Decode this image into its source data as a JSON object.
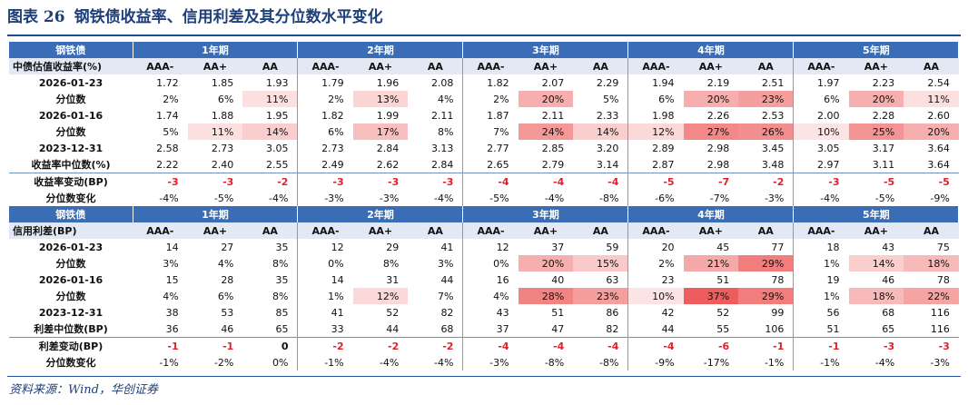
{
  "title": {
    "prefix": "图表 26",
    "text": "钢铁债收益率、信用利差及其分位数水平变化"
  },
  "header_row1": [
    "钢铁债",
    "1年期",
    "2年期",
    "3年期",
    "4年期",
    "5年期"
  ],
  "header_row2": [
    "中债估值收益率(%)",
    "AAA-",
    "AA+",
    "AA",
    "AAA-",
    "AA+",
    "AA",
    "AAA-",
    "AA+",
    "AA",
    "AAA-",
    "AA+",
    "AA",
    "AAA-",
    "AA+",
    "AA"
  ],
  "yield_rows": [
    {
      "label": "2026-01-23",
      "values": [
        "1.72",
        "1.85",
        "1.93",
        "1.79",
        "1.96",
        "2.08",
        "1.82",
        "2.07",
        "2.29",
        "1.94",
        "2.19",
        "2.51",
        "1.97",
        "2.23",
        "2.54"
      ]
    },
    {
      "label": "分位数",
      "values": [
        "2%",
        "6%",
        "11%",
        "2%",
        "13%",
        "4%",
        "2%",
        "20%",
        "5%",
        "6%",
        "20%",
        "23%",
        "6%",
        "20%",
        "11%"
      ]
    },
    {
      "label": "2026-01-16",
      "values": [
        "1.74",
        "1.88",
        "1.95",
        "1.82",
        "1.99",
        "2.11",
        "1.87",
        "2.11",
        "2.33",
        "1.98",
        "2.26",
        "2.53",
        "2.00",
        "2.28",
        "2.60"
      ]
    },
    {
      "label": "分位数",
      "values": [
        "5%",
        "11%",
        "14%",
        "6%",
        "17%",
        "8%",
        "7%",
        "24%",
        "14%",
        "12%",
        "27%",
        "26%",
        "10%",
        "25%",
        "20%"
      ]
    },
    {
      "label": "2023-12-31",
      "values": [
        "2.58",
        "2.73",
        "3.05",
        "2.73",
        "2.84",
        "3.13",
        "2.77",
        "2.85",
        "3.20",
        "2.89",
        "2.98",
        "3.45",
        "3.05",
        "3.17",
        "3.64"
      ]
    },
    {
      "label": "收益率中位数(%)",
      "values": [
        "2.22",
        "2.40",
        "2.55",
        "2.49",
        "2.62",
        "2.84",
        "2.65",
        "2.79",
        "3.14",
        "2.87",
        "2.98",
        "3.48",
        "2.97",
        "3.11",
        "3.64"
      ]
    },
    {
      "label": "收益率变动(BP)",
      "values": [
        "-3",
        "-3",
        "-2",
        "-3",
        "-3",
        "-3",
        "-4",
        "-4",
        "-4",
        "-5",
        "-7",
        "-2",
        "-3",
        "-5",
        "-5"
      ]
    },
    {
      "label": "分位数变化",
      "values": [
        "-4%",
        "-5%",
        "-4%",
        "-3%",
        "-3%",
        "-4%",
        "-5%",
        "-4%",
        "-8%",
        "-6%",
        "-7%",
        "-3%",
        "-4%",
        "-5%",
        "-9%"
      ]
    }
  ],
  "header_row3": [
    "钢铁债",
    "1年期",
    "2年期",
    "3年期",
    "4年期",
    "5年期"
  ],
  "header_row4": [
    "信用利差(BP)",
    "AAA-",
    "AA+",
    "AA",
    "AAA-",
    "AA+",
    "AA",
    "AAA-",
    "AA+",
    "AA",
    "AAA-",
    "AA+",
    "AA",
    "AAA-",
    "AA+",
    "AA"
  ],
  "spread_rows": [
    {
      "label": "2026-01-23",
      "values": [
        "14",
        "27",
        "35",
        "12",
        "29",
        "41",
        "12",
        "37",
        "59",
        "20",
        "45",
        "77",
        "18",
        "43",
        "75"
      ]
    },
    {
      "label": "分位数",
      "values": [
        "3%",
        "4%",
        "8%",
        "0%",
        "8%",
        "3%",
        "0%",
        "20%",
        "15%",
        "2%",
        "21%",
        "29%",
        "1%",
        "14%",
        "18%"
      ]
    },
    {
      "label": "2026-01-16",
      "values": [
        "15",
        "28",
        "35",
        "14",
        "31",
        "44",
        "16",
        "40",
        "63",
        "23",
        "51",
        "78",
        "19",
        "46",
        "78"
      ]
    },
    {
      "label": "分位数",
      "values": [
        "4%",
        "6%",
        "8%",
        "1%",
        "12%",
        "7%",
        "4%",
        "28%",
        "23%",
        "10%",
        "37%",
        "29%",
        "1%",
        "18%",
        "22%"
      ]
    },
    {
      "label": "2023-12-31",
      "values": [
        "38",
        "53",
        "85",
        "41",
        "52",
        "82",
        "43",
        "51",
        "86",
        "42",
        "52",
        "99",
        "56",
        "68",
        "116"
      ]
    },
    {
      "label": "利差中位数(BP)",
      "values": [
        "36",
        "46",
        "65",
        "33",
        "44",
        "68",
        "37",
        "47",
        "82",
        "44",
        "55",
        "106",
        "51",
        "65",
        "116"
      ]
    },
    {
      "label": "利差变动(BP)",
      "values": [
        "-1",
        "-1",
        "0",
        "-2",
        "-2",
        "-2",
        "-4",
        "-4",
        "-4",
        "-4",
        "-6",
        "-1",
        "-1",
        "-3",
        "-3"
      ]
    },
    {
      "label": "分位数变化",
      "values": [
        "-1%",
        "-2%",
        "0%",
        "-1%",
        "-4%",
        "-4%",
        "-3%",
        "-8%",
        "-8%",
        "-9%",
        "-17%",
        "-1%",
        "-1%",
        "-4%",
        "-3%"
      ]
    }
  ],
  "source": "资料来源：Wind，华创证券",
  "colors": {
    "header_blue": "#3a6db5",
    "subheader": "#e2e9f5",
    "red_text": "#e0202a",
    "heat_max": "#ee5d5d"
  }
}
